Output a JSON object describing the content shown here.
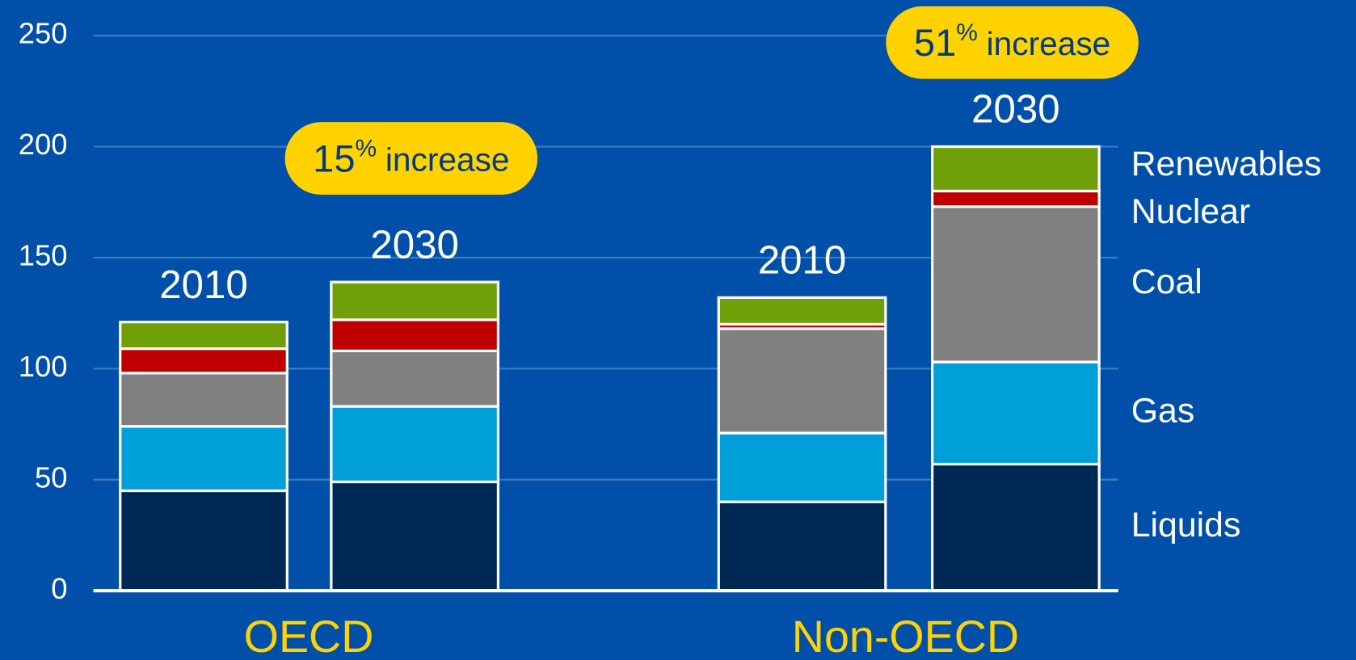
{
  "chart_data": {
    "type": "stacked-bar",
    "groups": [
      "OECD",
      "Non-OECD"
    ],
    "categories": [
      [
        "2010",
        "2030"
      ],
      [
        "2010",
        "2030"
      ]
    ],
    "series": [
      {
        "name": "Liquids",
        "color": "#002855",
        "values": [
          [
            45,
            49
          ],
          [
            40,
            57
          ]
        ]
      },
      {
        "name": "Gas",
        "color": "#009fda",
        "values": [
          [
            29,
            34
          ],
          [
            31,
            46
          ]
        ]
      },
      {
        "name": "Coal",
        "color": "#808080",
        "values": [
          [
            24,
            25
          ],
          [
            47,
            70
          ]
        ]
      },
      {
        "name": "Nuclear",
        "color": "#c00000",
        "values": [
          [
            11,
            14
          ],
          [
            2,
            7
          ]
        ]
      },
      {
        "name": "Renewables",
        "color": "#6fa00a",
        "values": [
          [
            12,
            17
          ],
          [
            12,
            20
          ]
        ]
      }
    ],
    "annotations": [
      {
        "number": "15",
        "unit": "%",
        "text": "increase"
      },
      {
        "number": "51",
        "unit": "%",
        "text": "increase"
      }
    ],
    "ylim": [
      0,
      250
    ],
    "yticks": [
      0,
      50,
      100,
      150,
      200,
      250
    ],
    "grid": true,
    "legend": "right"
  }
}
